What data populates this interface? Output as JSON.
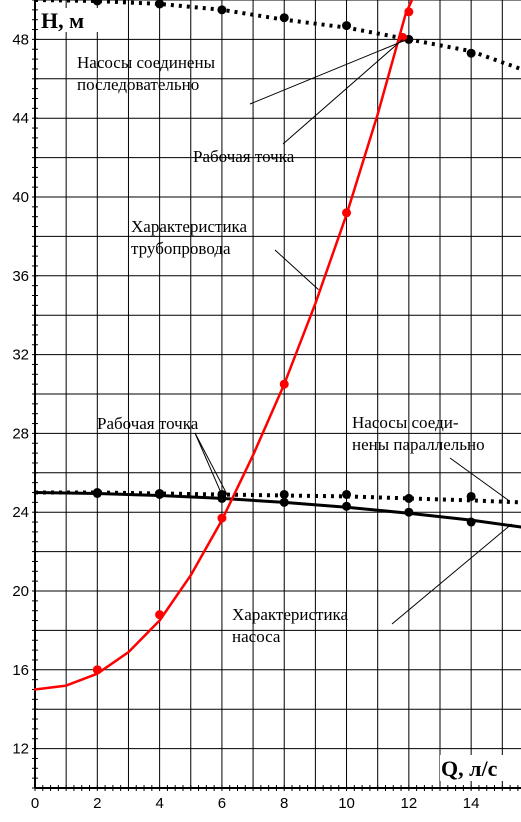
{
  "chart_data": {
    "type": "line",
    "title": "",
    "xlabel": "Q, л/с",
    "ylabel": "H, м",
    "xlim": [
      0,
      15.6
    ],
    "ylim": [
      10,
      50
    ],
    "x_ticks": [
      0,
      2,
      4,
      6,
      8,
      10,
      12,
      14
    ],
    "y_ticks": [
      12,
      16,
      20,
      24,
      28,
      32,
      36,
      40,
      44,
      48
    ],
    "grid": true,
    "colors": {
      "pipeline": "#ff0000",
      "pump": "#000000",
      "markers": "#000000"
    },
    "series": [
      {
        "key": "series_pump",
        "style": "solid",
        "color": "#000000",
        "curve": [
          [
            0,
            25.0
          ],
          [
            2,
            24.95
          ],
          [
            4,
            24.85
          ],
          [
            6,
            24.7
          ],
          [
            8,
            24.5
          ],
          [
            10,
            24.25
          ],
          [
            12,
            23.95
          ],
          [
            14,
            23.6
          ],
          [
            15.6,
            23.25
          ]
        ],
        "points": [
          [
            2,
            24.95
          ],
          [
            4,
            24.9
          ],
          [
            6,
            24.7
          ],
          [
            8,
            24.5
          ],
          [
            10,
            24.3
          ],
          [
            12,
            24.0
          ],
          [
            14,
            23.5
          ]
        ]
      },
      {
        "key": "series_parallel",
        "style": "dotted",
        "color": "#000000",
        "curve": [
          [
            0,
            25.0
          ],
          [
            2,
            25.0
          ],
          [
            4,
            24.95
          ],
          [
            6,
            24.9
          ],
          [
            8,
            24.85
          ],
          [
            10,
            24.8
          ],
          [
            12,
            24.7
          ],
          [
            14,
            24.6
          ],
          [
            15.6,
            24.5
          ]
        ],
        "points": [
          [
            2,
            25.0
          ],
          [
            4,
            24.95
          ],
          [
            6,
            24.9
          ],
          [
            8,
            24.9
          ],
          [
            10,
            24.9
          ],
          [
            12,
            24.7
          ],
          [
            14,
            24.8
          ]
        ]
      },
      {
        "key": "series_series",
        "style": "dotted",
        "color": "#000000",
        "curve": [
          [
            0,
            50.0
          ],
          [
            2,
            49.95
          ],
          [
            4,
            49.8
          ],
          [
            6,
            49.5
          ],
          [
            8,
            49.0
          ],
          [
            10,
            48.6
          ],
          [
            12,
            48.0
          ],
          [
            14,
            47.4
          ],
          [
            15.6,
            46.5
          ]
        ],
        "points": [
          [
            2,
            49.95
          ],
          [
            4,
            49.8
          ],
          [
            6,
            49.5
          ],
          [
            8,
            49.1
          ],
          [
            10,
            48.7
          ],
          [
            12,
            48.0
          ],
          [
            14,
            47.3
          ]
        ]
      },
      {
        "key": "series_pipeline",
        "style": "solid",
        "color": "#ff0000",
        "curve": [
          [
            0,
            15.0
          ],
          [
            1,
            15.2
          ],
          [
            2,
            15.8
          ],
          [
            3,
            16.9
          ],
          [
            4,
            18.5
          ],
          [
            5,
            20.8
          ],
          [
            6,
            23.6
          ],
          [
            7,
            26.9
          ],
          [
            8,
            30.5
          ],
          [
            9,
            34.6
          ],
          [
            10,
            39.1
          ],
          [
            11,
            44.2
          ],
          [
            11.9,
            49.3
          ],
          [
            12.1,
            50.0
          ]
        ],
        "points": [
          [
            2,
            16.0
          ],
          [
            4,
            18.8
          ],
          [
            6,
            23.7
          ],
          [
            8,
            30.5
          ],
          [
            10,
            39.2
          ],
          [
            11.8,
            48.1
          ],
          [
            12,
            49.4
          ]
        ]
      }
    ],
    "annotations": [
      {
        "key": "ann_series",
        "lines": [
          "Насосы соединены",
          "последовательно"
        ],
        "target": [
          12.1,
          48.1
        ]
      },
      {
        "key": "ann_wp_top",
        "lines": [
          "Рабочая точка"
        ],
        "target": [
          11.8,
          48.0
        ]
      },
      {
        "key": "ann_pipeline",
        "lines": [
          "Характеристика",
          "трубопровода"
        ],
        "target": [
          9.1,
          35.3
        ]
      },
      {
        "key": "ann_wp_bottom",
        "lines": [
          "Рабочая точка"
        ],
        "target": [
          6.2,
          24.8
        ]
      },
      {
        "key": "ann_parallel",
        "lines": [
          "Насосы соеди-",
          "нены параллельно"
        ],
        "target": [
          15.2,
          24.6
        ]
      },
      {
        "key": "ann_pump",
        "lines": [
          "Характеристика",
          "насоса"
        ],
        "target": [
          15.3,
          23.4
        ]
      }
    ]
  }
}
